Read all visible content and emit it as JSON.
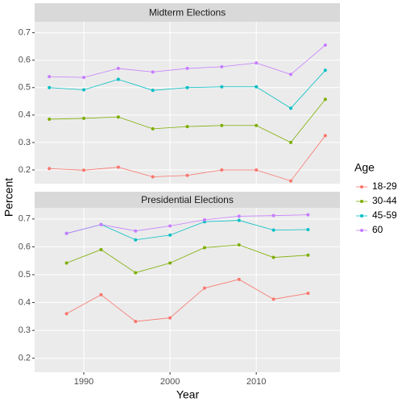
{
  "chart_data": [
    {
      "type": "line",
      "title": "Midterm Elections",
      "ylabel": "Percent",
      "legend_title": "Age",
      "x": [
        1986,
        1990,
        1994,
        1998,
        2002,
        2006,
        2010,
        2014,
        2018
      ],
      "xlim": [
        1984.3,
        2019.7
      ],
      "xticks": [
        1990,
        2000,
        2010
      ],
      "ylim": [
        0.15,
        0.74
      ],
      "yticks": [
        0.2,
        0.3,
        0.4,
        0.5,
        0.6,
        0.7
      ],
      "grid": true,
      "legend": "right",
      "series": [
        {
          "name": "18-29",
          "color": "#F8766D",
          "values": [
            0.205,
            0.199,
            0.21,
            0.175,
            0.18,
            0.2,
            0.2,
            0.16,
            0.325
          ]
        },
        {
          "name": "30-44",
          "color": "#7CAE00",
          "values": [
            0.385,
            0.388,
            0.393,
            0.35,
            0.358,
            0.362,
            0.362,
            0.3,
            0.457
          ]
        },
        {
          "name": "45-59",
          "color": "#00BFC4",
          "values": [
            0.5,
            0.492,
            0.53,
            0.49,
            0.5,
            0.503,
            0.503,
            0.425,
            0.563
          ]
        },
        {
          "name": "60",
          "color": "#C77CFF",
          "values": [
            0.54,
            0.537,
            0.57,
            0.557,
            0.57,
            0.576,
            0.59,
            0.548,
            0.655
          ]
        }
      ]
    },
    {
      "type": "line",
      "title": "Presidential Elections",
      "xlabel": "Year",
      "x": [
        1988,
        1992,
        1996,
        2000,
        2004,
        2008,
        2012,
        2016
      ],
      "xlim": [
        1984.3,
        2019.7
      ],
      "xticks": [
        1990,
        2000,
        2010
      ],
      "ylim": [
        0.15,
        0.74
      ],
      "yticks": [
        0.2,
        0.3,
        0.4,
        0.5,
        0.6,
        0.7
      ],
      "grid": true,
      "series": [
        {
          "name": "18-29",
          "color": "#F8766D",
          "values": [
            0.36,
            0.428,
            0.332,
            0.345,
            0.452,
            0.483,
            0.412,
            0.433
          ]
        },
        {
          "name": "30-44",
          "color": "#7CAE00",
          "values": [
            0.542,
            0.59,
            0.507,
            0.542,
            0.597,
            0.607,
            0.562,
            0.57
          ]
        },
        {
          "name": "45-59",
          "color": "#00BFC4",
          "values": [
            0.648,
            0.68,
            0.625,
            0.642,
            0.69,
            0.695,
            0.66,
            0.662
          ]
        },
        {
          "name": "60",
          "color": "#C77CFF",
          "values": [
            0.648,
            0.68,
            0.657,
            0.675,
            0.697,
            0.71,
            0.712,
            0.715
          ]
        }
      ]
    }
  ]
}
